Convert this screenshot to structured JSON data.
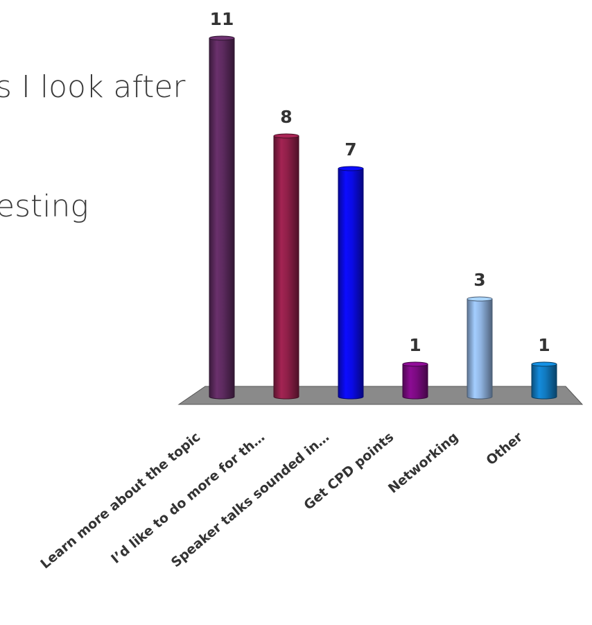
{
  "slide": {
    "line_1": "s I look after",
    "line_2": "esting"
  },
  "chart_data": {
    "type": "bar",
    "categories": [
      "Learn more about the topic",
      "I’d like to do more for th…",
      "Speaker talks sounded in…",
      "Get CPD points",
      "Networking",
      "Other"
    ],
    "values": [
      11,
      8,
      7,
      1,
      3,
      1
    ],
    "colors": [
      "#5c2a5e",
      "#8e1f48",
      "#0a0ae6",
      "#7a0a80",
      "#8fb3e0",
      "#1179bf"
    ],
    "floor_color": "#8a8a8a",
    "ylim": [
      0,
      11
    ],
    "grid": false,
    "legend": "none",
    "style": "3d-cylinder"
  }
}
